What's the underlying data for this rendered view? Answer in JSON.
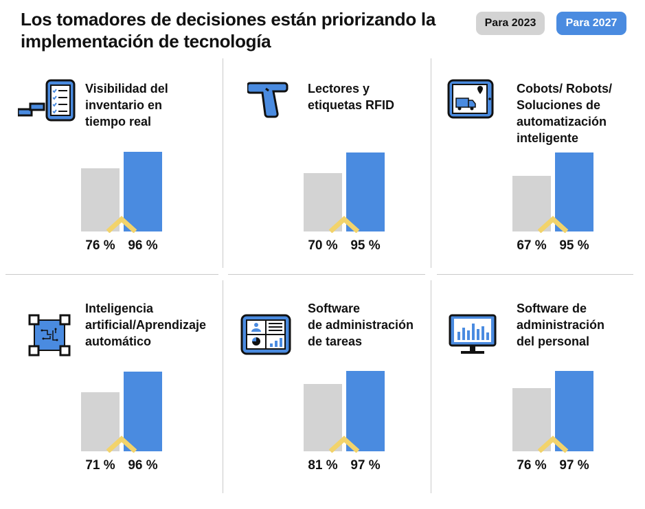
{
  "title": "Los tomadores de decisiones están priorizando la implementación de tecnología",
  "legend": {
    "label_2023": "Para 2023",
    "label_2027": "Para 2027"
  },
  "colors": {
    "bar_2023": "#d3d3d3",
    "bar_2027": "#4a8be0",
    "accent": "#f2d36b",
    "icon_dark": "#111111"
  },
  "chart_data": {
    "type": "bar",
    "series": [
      {
        "name": "Para 2023",
        "values": [
          76,
          70,
          67,
          71,
          81,
          76
        ]
      },
      {
        "name": "Para 2027",
        "values": [
          96,
          95,
          95,
          96,
          97,
          97
        ]
      }
    ],
    "panels": [
      {
        "lines": [
          "Visibilidad del",
          "inventario en",
          "tiempo real"
        ],
        "icon": "inventory-clipboard-icon",
        "labels": [
          "76 %",
          "96 %"
        ]
      },
      {
        "lines": [
          "Lectores y",
          "etiquetas RFID"
        ],
        "icon": "rfid-scanner-icon",
        "labels": [
          "70 %",
          "95 %"
        ]
      },
      {
        "lines": [
          "Cobots/ Robots/",
          "Soluciones de",
          "automatización",
          "inteligente"
        ],
        "icon": "delivery-tablet-icon",
        "labels": [
          "67 %",
          "95 %"
        ]
      },
      {
        "lines": [
          "Inteligencia",
          "artificial/Aprendizaje",
          "automático"
        ],
        "icon": "ai-chip-icon",
        "labels": [
          "71 %",
          "96 %"
        ]
      },
      {
        "lines": [
          "Software",
          "de administración",
          "de tareas"
        ],
        "icon": "task-dashboard-icon",
        "labels": [
          "81 %",
          "97 %"
        ]
      },
      {
        "lines": [
          "Software de",
          "administración",
          "del personal"
        ],
        "icon": "monitor-chart-icon",
        "labels": [
          "76 %",
          "97 %"
        ]
      }
    ]
  }
}
